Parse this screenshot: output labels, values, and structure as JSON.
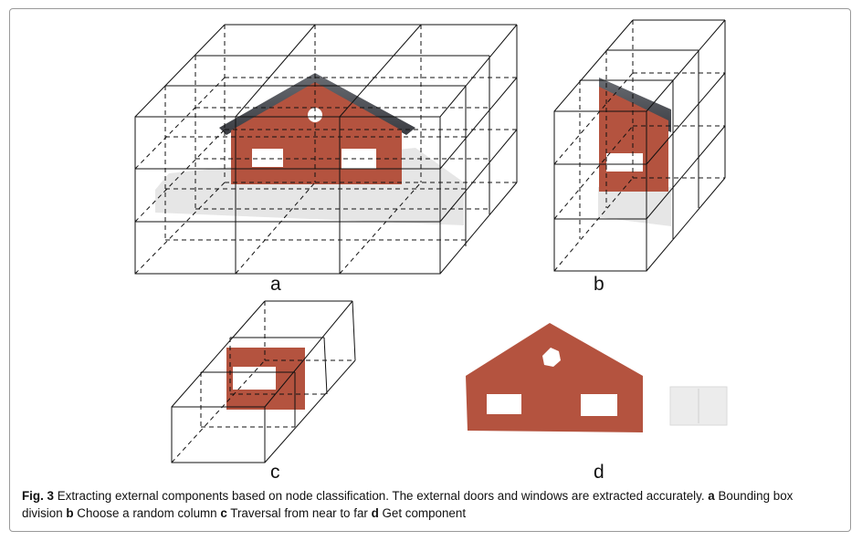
{
  "figure": {
    "panel_labels": {
      "a": "a",
      "b": "b",
      "c": "c",
      "d": "d"
    },
    "caption": {
      "fig_label": "Fig. 3",
      "main_text": " Extracting external components based on node classification. The external doors and windows are extracted accurately. ",
      "a_key": "a",
      "a_text": " Bounding box division ",
      "b_key": "b",
      "b_text": " Choose a random column ",
      "c_key": "c",
      "c_text": " Traversal from near to far ",
      "d_key": "d",
      "d_text": " Get component"
    },
    "colors": {
      "wall": "#b4533f",
      "roof": "#4b4e55",
      "window": "#ffffff",
      "ground": "#e2e2e2",
      "line": "#111111"
    }
  }
}
